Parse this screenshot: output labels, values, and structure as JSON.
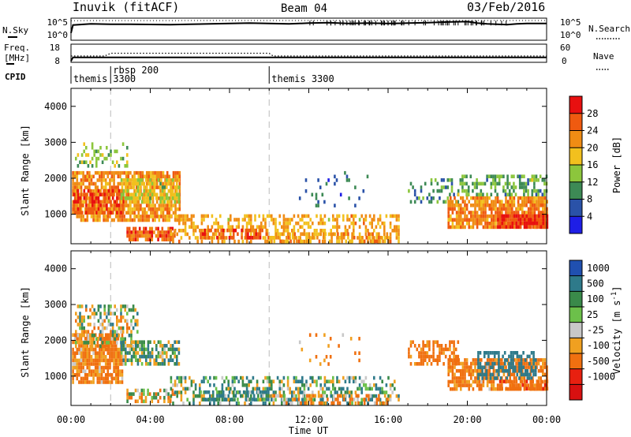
{
  "header": {
    "station": "Inuvik (fitACF)",
    "beam": "Beam 04",
    "date": "03/Feb/2016"
  },
  "strip_labels": {
    "nsky": "N.Sky",
    "nsky_top": "10^5",
    "nsky_bottom": "10^0",
    "nsearch": "N.Search",
    "nsearch_top": "10^5",
    "nsearch_bottom": "10^0",
    "freq_line1": "Freq.",
    "freq_line2": "[MHz]",
    "freq_top": "18",
    "freq_bottom": "8",
    "nave": "Nave",
    "nave_top": "60",
    "nave_bottom": "0",
    "cpid": "CPID"
  },
  "cpid_segments": [
    {
      "start_hour": 0.0,
      "label": "themis"
    },
    {
      "start_hour": 2.0,
      "label": "rbsp 200 3300"
    },
    {
      "start_hour": 10.0,
      "label": "themis 3300"
    }
  ],
  "axes": {
    "ylabel": "Slant Range [km]",
    "xlabel": "Time UT",
    "x_ticks": [
      "00:00",
      "04:00",
      "08:00",
      "12:00",
      "16:00",
      "20:00",
      "00:00"
    ],
    "y_ticks": [
      "1000",
      "2000",
      "3000",
      "4000"
    ]
  },
  "colorbars": {
    "power": {
      "label": "Power [dB]",
      "ticks": [
        "4",
        "8",
        "12",
        "16",
        "20",
        "24",
        "28"
      ]
    },
    "velocity": {
      "label_main": "Velocity",
      "label_unit": "[m s",
      "label_exp": "-1",
      "label_close": "]",
      "ticks": [
        "1000",
        "500",
        "100",
        "25",
        "-25",
        "-100",
        "-500",
        "-1000"
      ]
    }
  },
  "colors": {
    "power_scale": [
      "#1e1ee6",
      "#2a52a8",
      "#3d8a55",
      "#8cc63c",
      "#f2c01e",
      "#f08c14",
      "#ef5a10",
      "#e81010"
    ],
    "velocity_scale": [
      "#2050b0",
      "#2e7a8a",
      "#3a8a4a",
      "#6cc04a",
      "#c8c8c8",
      "#f0a020",
      "#f07010",
      "#e82010",
      "#d81010"
    ],
    "gray": "#c8c8c8"
  },
  "chart_data": [
    {
      "type": "line",
      "title": "Sky noise / Search noise",
      "x_range_hours": [
        0,
        24
      ],
      "nsky_series": [
        [
          0,
          0.3
        ],
        [
          0.1,
          0.72
        ],
        [
          1,
          0.78
        ],
        [
          2,
          0.76
        ],
        [
          3,
          0.76
        ],
        [
          4,
          0.75
        ],
        [
          5,
          0.74
        ],
        [
          6,
          0.76
        ],
        [
          7,
          0.78
        ],
        [
          8,
          0.8
        ],
        [
          9,
          0.82
        ],
        [
          10,
          0.8
        ],
        [
          11,
          0.78
        ],
        [
          12,
          0.82
        ],
        [
          13,
          0.84
        ],
        [
          14,
          0.8
        ],
        [
          15,
          0.82
        ],
        [
          16,
          0.8
        ],
        [
          17,
          0.82
        ],
        [
          18,
          0.84
        ],
        [
          19,
          0.88
        ],
        [
          20,
          0.9
        ],
        [
          20.5,
          0.82
        ],
        [
          21,
          0.78
        ],
        [
          22,
          0.74
        ],
        [
          22.5,
          0.78
        ],
        [
          23,
          0.8
        ],
        [
          24,
          0.8
        ]
      ],
      "nsearch_series": [
        [
          0,
          0.95
        ],
        [
          8,
          0.96
        ],
        [
          16,
          0.96
        ],
        [
          24,
          0.96
        ]
      ]
    },
    {
      "type": "line",
      "title": "Frequency / Nave",
      "x_range_hours": [
        0,
        24
      ],
      "freq_mhz": [
        [
          0,
          8.3
        ],
        [
          0.1,
          10.5
        ],
        [
          24,
          10.5
        ]
      ],
      "nave_dotted": [
        [
          0,
          20
        ],
        [
          1.7,
          20
        ],
        [
          2,
          30
        ],
        [
          10,
          30
        ],
        [
          10.2,
          20
        ],
        [
          24,
          20
        ]
      ]
    },
    {
      "type": "heatmap",
      "title": "Power",
      "x_range_hours": [
        0,
        24
      ],
      "y_range_km": [
        180,
        4500
      ],
      "colorbar_range_db": [
        0,
        32
      ],
      "regions": [
        {
          "t0": 0.05,
          "t1": 5.5,
          "r0": 800,
          "r1": 2200,
          "v": 22,
          "d": 0.78
        },
        {
          "t0": 0.1,
          "t1": 2.6,
          "r0": 1000,
          "r1": 1700,
          "v": 27,
          "d": 0.7
        },
        {
          "t0": 0.2,
          "t1": 2.8,
          "r0": 2300,
          "r1": 3000,
          "v": 14,
          "d": 0.3
        },
        {
          "t0": 2.5,
          "t1": 5.5,
          "r0": 1300,
          "r1": 2000,
          "v": 16,
          "d": 0.6
        },
        {
          "t0": 2.8,
          "t1": 5.2,
          "r0": 300,
          "r1": 650,
          "v": 25,
          "d": 0.8
        },
        {
          "t0": 5.0,
          "t1": 16.5,
          "r0": 200,
          "r1": 1000,
          "v": 20,
          "d": 0.45
        },
        {
          "t0": 6.5,
          "t1": 10.0,
          "r0": 300,
          "r1": 600,
          "v": 26,
          "d": 0.55
        },
        {
          "t0": 10.0,
          "t1": 16.0,
          "r0": 200,
          "r1": 500,
          "v": 22,
          "d": 0.5
        },
        {
          "t0": 11.5,
          "t1": 15.0,
          "r0": 1200,
          "r1": 2200,
          "v": 8,
          "d": 0.08
        },
        {
          "t0": 17.0,
          "t1": 19.5,
          "r0": 1300,
          "r1": 2000,
          "v": 10,
          "d": 0.35
        },
        {
          "t0": 19.0,
          "t1": 24.0,
          "r0": 600,
          "r1": 1500,
          "v": 23,
          "d": 0.8
        },
        {
          "t0": 21.5,
          "t1": 24.0,
          "r0": 600,
          "r1": 1000,
          "v": 29,
          "d": 0.9
        },
        {
          "t0": 19.5,
          "t1": 24.0,
          "r0": 1500,
          "r1": 2100,
          "v": 12,
          "d": 0.5
        }
      ]
    },
    {
      "type": "heatmap",
      "title": "Velocity",
      "x_range_hours": [
        0,
        24
      ],
      "y_range_km": [
        180,
        4500
      ],
      "colorbar_range_ms": [
        -1000,
        1000
      ],
      "regions": [
        {
          "t0": 0.05,
          "t1": 2.6,
          "r0": 800,
          "r1": 2200,
          "v": -150,
          "d": 0.82
        },
        {
          "t0": 0.2,
          "t1": 3.4,
          "r0": 1800,
          "r1": 3000,
          "v": 0,
          "d": 0.45
        },
        {
          "t0": 2.5,
          "t1": 5.5,
          "r0": 1300,
          "r1": 2000,
          "v": 40,
          "d": 0.7
        },
        {
          "t0": 2.8,
          "t1": 5.2,
          "r0": 300,
          "r1": 650,
          "v": -60,
          "d": 0.55
        },
        {
          "t0": 5.0,
          "t1": 16.5,
          "r0": 200,
          "r1": 1000,
          "v": 60,
          "d": 0.45
        },
        {
          "t0": 6.5,
          "t1": 10.0,
          "r0": 300,
          "r1": 600,
          "v": 120,
          "d": 0.55
        },
        {
          "t0": 10.0,
          "t1": 16.0,
          "r0": 200,
          "r1": 500,
          "v": -120,
          "d": 0.45
        },
        {
          "t0": 11.5,
          "t1": 15.0,
          "r0": 1200,
          "r1": 2200,
          "v": -150,
          "d": 0.08
        },
        {
          "t0": 17.0,
          "t1": 19.5,
          "r0": 1300,
          "r1": 2000,
          "v": -180,
          "d": 0.45
        },
        {
          "t0": 19.0,
          "t1": 24.0,
          "r0": 600,
          "r1": 1500,
          "v": -160,
          "d": 0.75
        },
        {
          "t0": 20.5,
          "t1": 23.5,
          "r0": 900,
          "r1": 1700,
          "v": 300,
          "d": 0.5
        },
        {
          "t0": 21.5,
          "t1": 24.0,
          "r0": 600,
          "r1": 900,
          "v": -400,
          "d": 0.6
        }
      ]
    }
  ]
}
